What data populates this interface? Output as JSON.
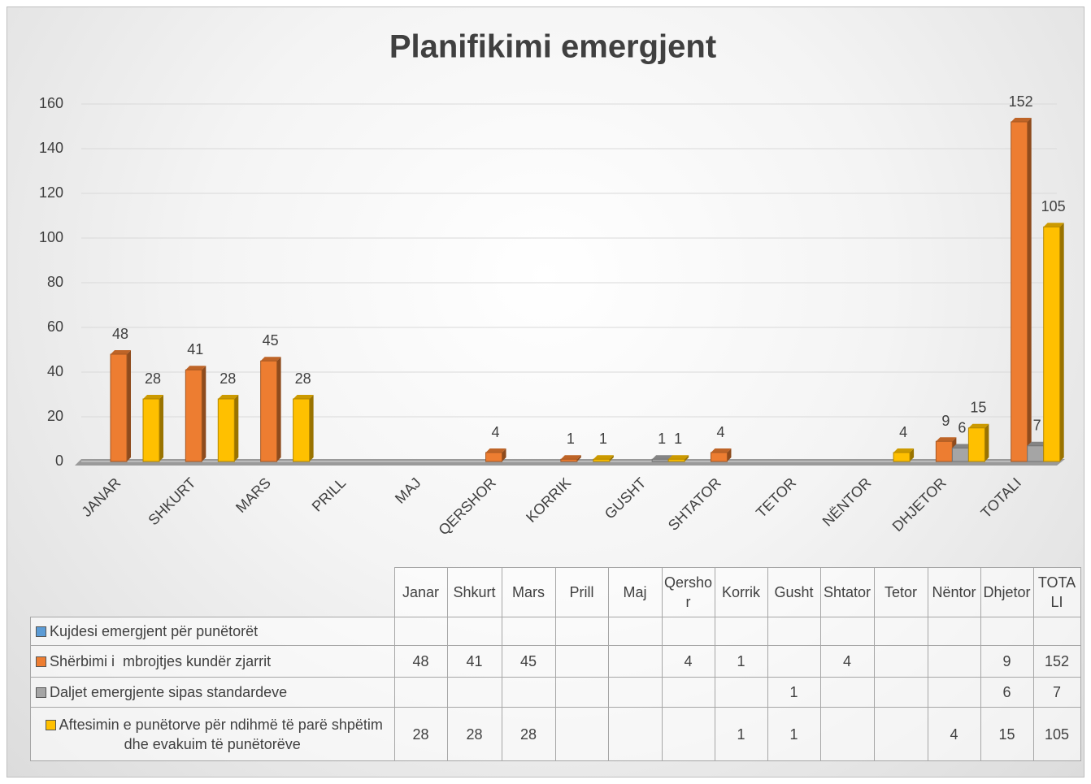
{
  "chart_data": {
    "type": "bar3d",
    "title": "Planifikimi emergjent",
    "categories": [
      "JANAR",
      "SHKURT",
      "MARS",
      "PRILL",
      "MAJ",
      "QERSHOR",
      "KORRIK",
      "GUSHT",
      "SHTATOR",
      "TETOR",
      "NËNTOR",
      "DHJETOR",
      "TOTALI"
    ],
    "table_columns": [
      "Janar",
      "Shkurt",
      "Mars",
      "Prill",
      "Maj",
      "Qershor",
      "Korrik",
      "Gusht",
      "Shtator",
      "Tetor",
      "Nëntor",
      "Dhjetor",
      "TOTALI"
    ],
    "series": [
      {
        "name": "Kujdesi emergjent për punëtorët",
        "color": "#5b9bd5",
        "values": [
          null,
          null,
          null,
          null,
          null,
          null,
          null,
          null,
          null,
          null,
          null,
          null,
          null
        ]
      },
      {
        "name": "Shërbimi i  mbrojtjes kundër zjarrit",
        "color": "#ed7d31",
        "values": [
          48,
          41,
          45,
          null,
          null,
          4,
          1,
          null,
          4,
          null,
          null,
          9,
          152
        ]
      },
      {
        "name": "Daljet emergjente sipas standardeve",
        "color": "#a5a5a5",
        "values": [
          null,
          null,
          null,
          null,
          null,
          null,
          null,
          1,
          null,
          null,
          null,
          6,
          7
        ]
      },
      {
        "name": "Aftesimin e punëtorve për ndihmë të parë shpëtim dhe evakuim të punëtorëve",
        "color": "#ffc000",
        "values": [
          28,
          28,
          28,
          null,
          null,
          null,
          1,
          1,
          null,
          null,
          4,
          15,
          105
        ]
      }
    ],
    "ylim": [
      0,
      160
    ],
    "yticks": [
      0,
      20,
      40,
      60,
      80,
      100,
      120,
      140,
      160
    ],
    "grid": true
  }
}
